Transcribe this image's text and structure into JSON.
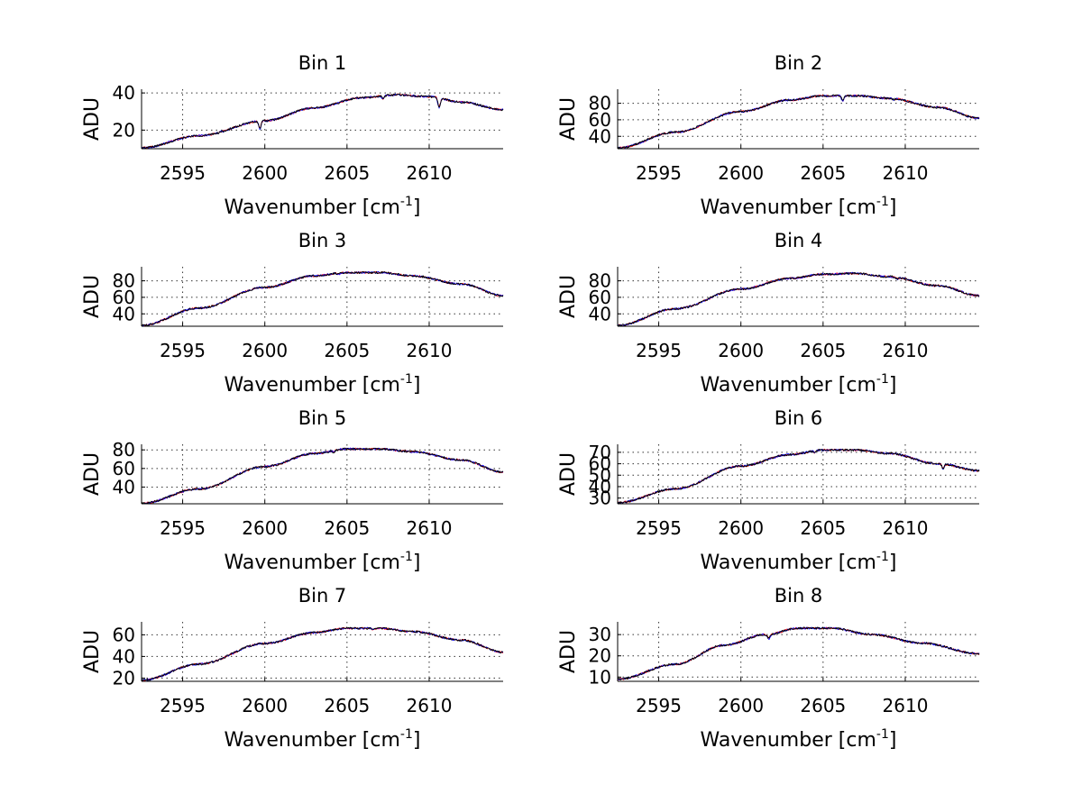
{
  "chart_data": [
    {
      "type": "line",
      "title": "Bin 1",
      "xlabel": "Wavenumber [cm",
      "xlabel_sup": "-1",
      "xlabel_end": "]",
      "ylabel": "ADU",
      "xlim": [
        2592.5,
        2614.5
      ],
      "ylim": [
        10,
        42
      ],
      "xticks": [
        2595,
        2600,
        2605,
        2610
      ],
      "yticks": [
        20,
        40
      ],
      "profile": [
        [
          2592.5,
          10.5
        ],
        [
          2596,
          17
        ],
        [
          2600,
          25
        ],
        [
          2603,
          32
        ],
        [
          2606,
          37.5
        ],
        [
          2608,
          39
        ],
        [
          2610,
          38
        ],
        [
          2612,
          35
        ],
        [
          2614.5,
          31
        ]
      ],
      "dips": [
        [
          2599.7,
          4
        ],
        [
          2610.6,
          5
        ],
        [
          2607.2,
          1.5
        ]
      ],
      "series": [
        {
          "name": "red",
          "color": "#ff0000"
        },
        {
          "name": "blue",
          "color": "#0000ff"
        },
        {
          "name": "black",
          "color": "#000000"
        }
      ]
    },
    {
      "type": "line",
      "title": "Bin 2",
      "xlabel": "Wavenumber [cm",
      "xlabel_sup": "-1",
      "xlabel_end": "]",
      "ylabel": "ADU",
      "xlim": [
        2592.5,
        2614.5
      ],
      "ylim": [
        25,
        97
      ],
      "xticks": [
        2595,
        2600,
        2605,
        2610
      ],
      "yticks": [
        40,
        60,
        80
      ],
      "profile": [
        [
          2592.5,
          26
        ],
        [
          2596,
          45
        ],
        [
          2600,
          70
        ],
        [
          2603,
          84
        ],
        [
          2605,
          89
        ],
        [
          2607,
          89
        ],
        [
          2609,
          86
        ],
        [
          2612,
          75
        ],
        [
          2614.5,
          62
        ]
      ],
      "dips": [
        [
          2606.2,
          6
        ],
        [
          2609.3,
          1.5
        ]
      ],
      "series": [
        {
          "name": "red",
          "color": "#ff0000"
        },
        {
          "name": "blue",
          "color": "#0000ff"
        },
        {
          "name": "black",
          "color": "#000000"
        }
      ]
    },
    {
      "type": "line",
      "title": "Bin 3",
      "xlabel": "Wavenumber [cm",
      "xlabel_sup": "-1",
      "xlabel_end": "]",
      "ylabel": "ADU",
      "xlim": [
        2592.5,
        2614.5
      ],
      "ylim": [
        25,
        97
      ],
      "xticks": [
        2595,
        2600,
        2605,
        2610
      ],
      "yticks": [
        40,
        60,
        80
      ],
      "profile": [
        [
          2592.5,
          26
        ],
        [
          2596,
          47
        ],
        [
          2600,
          72
        ],
        [
          2603,
          86
        ],
        [
          2605,
          90
        ],
        [
          2607,
          90
        ],
        [
          2609,
          86
        ],
        [
          2612,
          76
        ],
        [
          2614.5,
          62
        ]
      ],
      "dips": [
        [
          2604.5,
          1.5
        ]
      ],
      "series": [
        {
          "name": "red",
          "color": "#ff0000"
        },
        {
          "name": "blue",
          "color": "#0000ff"
        },
        {
          "name": "black",
          "color": "#000000"
        }
      ]
    },
    {
      "type": "line",
      "title": "Bin 4",
      "xlabel": "Wavenumber [cm",
      "xlabel_sup": "-1",
      "xlabel_end": "]",
      "ylabel": "ADU",
      "xlim": [
        2592.5,
        2614.5
      ],
      "ylim": [
        25,
        97
      ],
      "xticks": [
        2595,
        2600,
        2605,
        2610
      ],
      "yticks": [
        40,
        60,
        80
      ],
      "profile": [
        [
          2592.5,
          26
        ],
        [
          2596,
          46
        ],
        [
          2600,
          70
        ],
        [
          2603,
          83
        ],
        [
          2605,
          88
        ],
        [
          2607,
          89
        ],
        [
          2609,
          85
        ],
        [
          2612,
          74
        ],
        [
          2614.5,
          62
        ]
      ],
      "dips": [
        [
          2609.5,
          2
        ]
      ],
      "series": [
        {
          "name": "red",
          "color": "#ff0000"
        },
        {
          "name": "blue",
          "color": "#0000ff"
        },
        {
          "name": "black",
          "color": "#000000"
        }
      ]
    },
    {
      "type": "line",
      "title": "Bin 5",
      "xlabel": "Wavenumber [cm",
      "xlabel_sup": "-1",
      "xlabel_end": "]",
      "ylabel": "ADU",
      "xlim": [
        2592.5,
        2614.5
      ],
      "ylim": [
        22,
        86
      ],
      "xticks": [
        2595,
        2600,
        2605,
        2610
      ],
      "yticks": [
        40,
        60,
        80
      ],
      "profile": [
        [
          2592.5,
          22.5
        ],
        [
          2596,
          38
        ],
        [
          2600,
          62
        ],
        [
          2603,
          76
        ],
        [
          2605,
          81
        ],
        [
          2607,
          81
        ],
        [
          2609,
          78
        ],
        [
          2612,
          69
        ],
        [
          2614.5,
          56
        ]
      ],
      "dips": [
        [
          2604.2,
          1.5
        ]
      ],
      "series": [
        {
          "name": "red",
          "color": "#ff0000"
        },
        {
          "name": "blue",
          "color": "#0000ff"
        },
        {
          "name": "black",
          "color": "#000000"
        }
      ]
    },
    {
      "type": "line",
      "title": "Bin 6",
      "xlabel": "Wavenumber [cm",
      "xlabel_sup": "-1",
      "xlabel_end": "]",
      "ylabel": "ADU",
      "xlim": [
        2592.5,
        2614.5
      ],
      "ylim": [
        25,
        77
      ],
      "xticks": [
        2595,
        2600,
        2605,
        2610
      ],
      "yticks": [
        30,
        40,
        50,
        60,
        70
      ],
      "ytick_labels": [
        "30",
        "40",
        "50",
        "60",
        "70"
      ],
      "profile": [
        [
          2592.5,
          26
        ],
        [
          2596,
          38
        ],
        [
          2600,
          58
        ],
        [
          2603,
          68
        ],
        [
          2605,
          72
        ],
        [
          2607,
          72
        ],
        [
          2609,
          69
        ],
        [
          2612,
          60
        ],
        [
          2614.5,
          54
        ]
      ],
      "dips": [
        [
          2612.3,
          4
        ],
        [
          2604.5,
          1.5
        ]
      ],
      "series": [
        {
          "name": "red",
          "color": "#ff0000"
        },
        {
          "name": "blue",
          "color": "#0000ff"
        },
        {
          "name": "black",
          "color": "#000000"
        }
      ]
    },
    {
      "type": "line",
      "title": "Bin 7",
      "xlabel": "Wavenumber [cm",
      "xlabel_sup": "-1",
      "xlabel_end": "]",
      "ylabel": "ADU",
      "xlim": [
        2592.5,
        2614.5
      ],
      "ylim": [
        17,
        72
      ],
      "xticks": [
        2595,
        2600,
        2605,
        2610
      ],
      "yticks": [
        20,
        40,
        60
      ],
      "profile": [
        [
          2592.5,
          18
        ],
        [
          2596,
          33
        ],
        [
          2600,
          52
        ],
        [
          2603,
          62
        ],
        [
          2605,
          66
        ],
        [
          2607,
          66
        ],
        [
          2609,
          63
        ],
        [
          2612,
          55
        ],
        [
          2614.5,
          44
        ]
      ],
      "dips": [
        [
          2606.6,
          1.5
        ]
      ],
      "series": [
        {
          "name": "red",
          "color": "#ff0000"
        },
        {
          "name": "blue",
          "color": "#0000ff"
        },
        {
          "name": "black",
          "color": "#000000"
        }
      ]
    },
    {
      "type": "line",
      "title": "Bin 8",
      "xlabel": "Wavenumber [cm",
      "xlabel_sup": "-1",
      "xlabel_end": "]",
      "ylabel": "ADU",
      "xlim": [
        2592.5,
        2614.5
      ],
      "ylim": [
        8,
        36
      ],
      "xticks": [
        2595,
        2600,
        2605,
        2610
      ],
      "yticks": [
        10,
        20,
        30
      ],
      "profile": [
        [
          2592.5,
          9
        ],
        [
          2596,
          16
        ],
        [
          2599,
          25
        ],
        [
          2601.5,
          30
        ],
        [
          2603.5,
          33
        ],
        [
          2605.5,
          33
        ],
        [
          2608,
          30
        ],
        [
          2611,
          26
        ],
        [
          2614.5,
          21
        ]
      ],
      "dips": [
        [
          2601.7,
          2
        ]
      ],
      "series": [
        {
          "name": "red",
          "color": "#ff0000"
        },
        {
          "name": "blue",
          "color": "#0000ff"
        },
        {
          "name": "black",
          "color": "#000000"
        }
      ]
    }
  ]
}
